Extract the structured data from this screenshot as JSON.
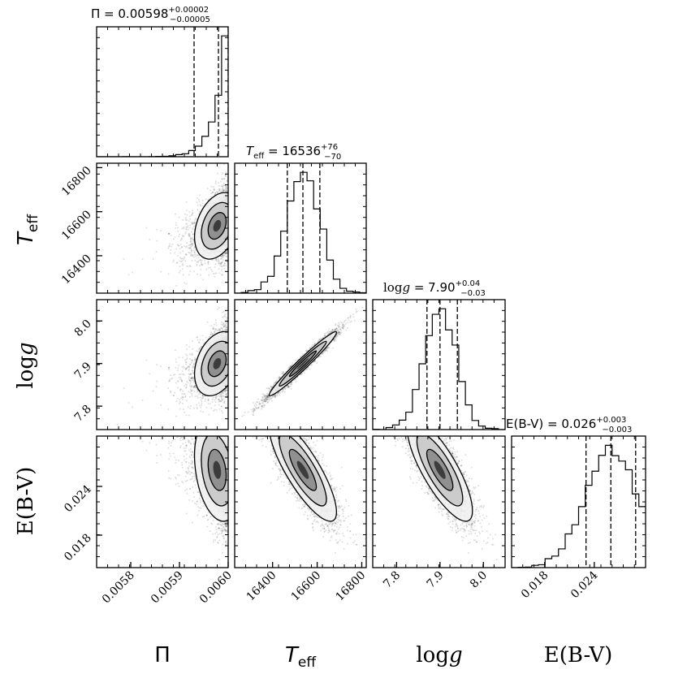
{
  "chart_data": {
    "type": "scatter",
    "subtype": "corner-plot",
    "parameters": [
      {
        "key": "pi",
        "label": "Π",
        "range": [
          0.00573,
          0.006
        ],
        "ticks": [
          "0.0058",
          "0.0059",
          "0.0060"
        ],
        "tick_values": [
          0.0058,
          0.0059,
          0.006
        ],
        "title": {
          "prefix": "Π = ",
          "value": "0.00598",
          "plus": "+0.00002",
          "minus": "−0.00005"
        },
        "median": 0.00598,
        "q16": 0.00593,
        "q84": 0.006
      },
      {
        "key": "teff",
        "label_main": "T",
        "label_sub": "eff",
        "range": [
          16230,
          16820
        ],
        "ticks": [
          "16400",
          "16600",
          "16800"
        ],
        "tick_values": [
          16400,
          16600,
          16800
        ],
        "title": {
          "prefix": "T",
          "sub": "eff",
          "eq": " = ",
          "value": "16536",
          "plus": "+76",
          "minus": "−70"
        },
        "median": 16536,
        "q16": 16466,
        "q84": 16612
      },
      {
        "key": "logg",
        "label_main": "log",
        "label_it": "g",
        "range": [
          7.745,
          8.05
        ],
        "ticks": [
          "7.8",
          "7.9",
          "8.0"
        ],
        "tick_values": [
          7.8,
          7.9,
          8.0
        ],
        "title": {
          "prefix": "log",
          "it": "g",
          "eq": " = ",
          "value": "7.90",
          "plus": "+0.04",
          "minus": "−0.03"
        },
        "median": 7.9,
        "q16": 7.87,
        "q84": 7.94
      },
      {
        "key": "ebv",
        "label": "E(B-V)",
        "range": [
          0.014,
          0.0302
        ],
        "ticks": [
          "0.018",
          "0.024"
        ],
        "tick_values": [
          0.018,
          0.024
        ],
        "title": {
          "prefix": "E(B-V) = ",
          "value": "0.026",
          "plus": "+0.003",
          "minus": "−0.003"
        },
        "median": 0.026,
        "q16": 0.023,
        "q84": 0.029
      }
    ],
    "correlations": {
      "pi_teff": 0.5,
      "pi_logg": 0.5,
      "pi_ebv": -0.5,
      "teff_logg": 0.97,
      "teff_ebv": -0.8,
      "logg_ebv": -0.8
    },
    "grid": false
  }
}
